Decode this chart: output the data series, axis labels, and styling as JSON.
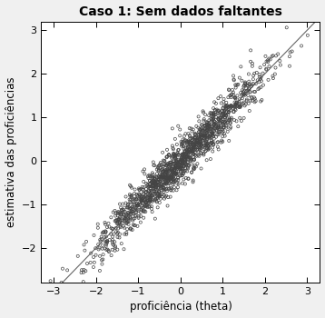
{
  "title": "Caso 1: Sem dados faltantes",
  "xlabel": "proficiência (theta)",
  "ylabel": "estimativa das proficiências",
  "xlim": [
    -3.3,
    3.3
  ],
  "ylim": [
    -2.8,
    3.2
  ],
  "xticks": [
    -3,
    -2,
    -1,
    0,
    1,
    2,
    3
  ],
  "yticks": [
    -2,
    -1,
    0,
    1,
    2,
    3
  ],
  "line_color": "#666666",
  "marker_color": "none",
  "marker_edge_color": "#444444",
  "marker_size": 5.0,
  "marker_lw": 0.5,
  "n_points": 1500,
  "seed": 7,
  "background_color": "#f0f0f0",
  "plot_bg_color": "#ffffff",
  "title_fontsize": 10,
  "label_fontsize": 8.5,
  "tick_fontsize": 8
}
